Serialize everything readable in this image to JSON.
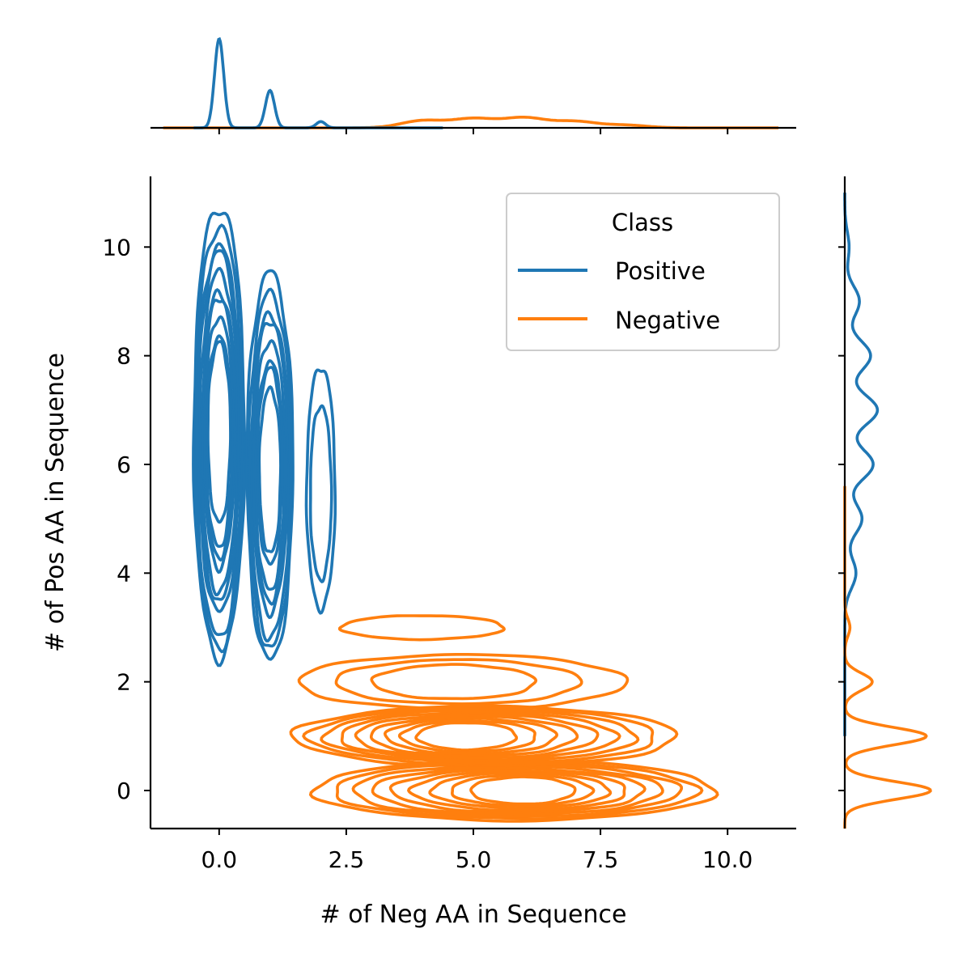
{
  "colors": {
    "positive": "#1f77b4",
    "negative": "#ff7f0e",
    "axis": "#000000",
    "background": "#ffffff"
  },
  "chart_data": {
    "type": "kde-jointplot",
    "xlabel": "# of Neg AA in Sequence",
    "ylabel": "# of Pos AA in Sequence",
    "xlim": [
      -1.35,
      11.35
    ],
    "ylim": [
      -0.7,
      11.3
    ],
    "x_ticks": [
      0.0,
      2.5,
      5.0,
      7.5,
      10.0
    ],
    "x_tick_labels": [
      "0.0",
      "2.5",
      "5.0",
      "7.5",
      "10.0"
    ],
    "y_ticks": [
      0,
      2,
      4,
      6,
      8,
      10
    ],
    "y_tick_labels": [
      "0",
      "2",
      "4",
      "6",
      "8",
      "10"
    ],
    "grid": false,
    "legend": {
      "title": "Class",
      "placement": "top-right",
      "entries": [
        "Positive",
        "Negative"
      ]
    },
    "series": [
      {
        "name": "Positive",
        "color": "#1f77b4",
        "contour_clusters": [
          {
            "x_center": 0.0,
            "y_range": [
              2.35,
              10.65
            ],
            "half_width": 0.5,
            "levels": 10
          },
          {
            "x_center": 1.0,
            "y_range": [
              2.3,
              9.45
            ],
            "half_width": 0.45,
            "levels": 8
          },
          {
            "x_center": 2.0,
            "y_range": [
              3.25,
              7.7
            ],
            "half_width": 0.28,
            "levels": 2
          }
        ],
        "marginal_x_peaks": [
          {
            "x": 0.0,
            "relative_height": 1.0
          },
          {
            "x": 1.0,
            "relative_height": 0.42
          },
          {
            "x": 2.0,
            "relative_height": 0.07
          }
        ],
        "marginal_x_range": [
          -0.5,
          4.4
        ],
        "marginal_y_peaks": [
          {
            "y": 8.0,
            "relative_height": 0.3
          },
          {
            "y": 7.0,
            "relative_height": 0.38
          },
          {
            "y": 6.0,
            "relative_height": 0.33
          },
          {
            "y": 5.0,
            "relative_height": 0.2
          },
          {
            "y": 4.0,
            "relative_height": 0.13
          },
          {
            "y": 9.0,
            "relative_height": 0.17
          },
          {
            "y": 10.0,
            "relative_height": 0.05
          }
        ],
        "marginal_y_range": [
          1.0,
          11.0
        ]
      },
      {
        "name": "Negative",
        "color": "#ff7f0e",
        "contour_clusters": [
          {
            "y_center": 0.0,
            "x_range": [
              1.85,
              9.75
            ],
            "half_height": 0.55,
            "levels": 9,
            "peak_x": 6.0
          },
          {
            "y_center": 1.0,
            "x_range": [
              1.45,
              9.0
            ],
            "half_height": 0.55,
            "levels": 9,
            "peak_x": 4.8
          },
          {
            "y_center": 2.0,
            "x_range": [
              1.55,
              8.0
            ],
            "half_height": 0.5,
            "levels": 3,
            "peak_x": 4.5
          },
          {
            "y_center": 3.0,
            "x_range": [
              2.4,
              5.6
            ],
            "half_height": 0.22,
            "levels": 1,
            "peak_x": 4.0
          }
        ],
        "marginal_x_peaks": [
          {
            "x": 4.0,
            "relative_height": 0.08
          },
          {
            "x": 5.0,
            "relative_height": 0.1
          },
          {
            "x": 6.0,
            "relative_height": 0.11
          },
          {
            "x": 7.0,
            "relative_height": 0.07
          },
          {
            "x": 8.0,
            "relative_height": 0.03
          }
        ],
        "marginal_x_range": [
          -1.1,
          11.0
        ],
        "marginal_y_peaks": [
          {
            "y": 0.0,
            "relative_height": 1.0
          },
          {
            "y": 1.0,
            "relative_height": 0.95
          },
          {
            "y": 2.0,
            "relative_height": 0.32
          },
          {
            "y": 3.0,
            "relative_height": 0.06
          }
        ],
        "marginal_y_range": [
          -0.7,
          5.6
        ]
      }
    ]
  }
}
